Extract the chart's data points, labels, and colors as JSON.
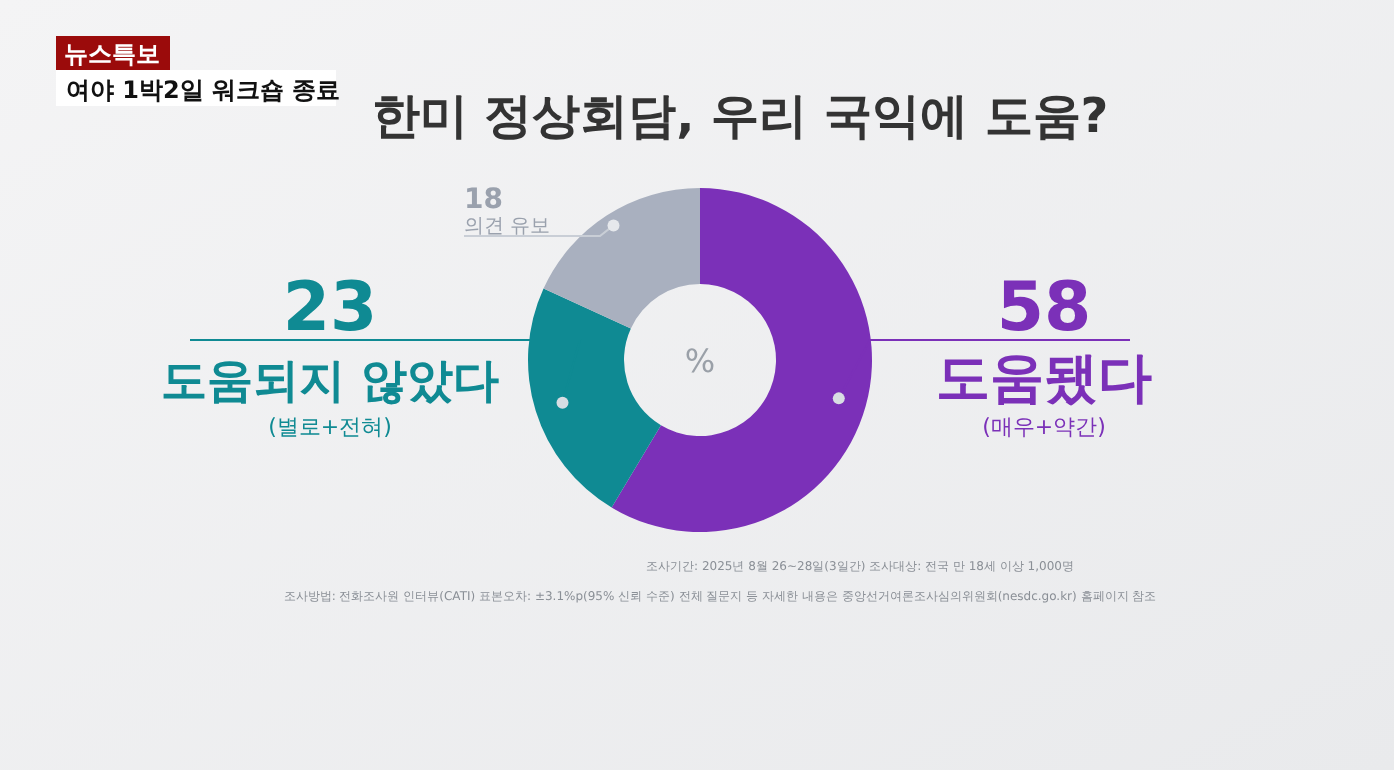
{
  "chart_data": {
    "type": "donut",
    "title": "한미 정상회담, 우리 국익에 도움?",
    "categories": [
      "도움됐다",
      "도움되지 않았다",
      "의견 유보"
    ],
    "values": [
      58,
      23,
      18
    ],
    "colors": [
      "#7b30b8",
      "#0f8a93",
      "#a9b0bf"
    ],
    "data_labels": true,
    "annotations": [
      "뉴스특보",
      "여야 1박2일 워크숍 종료",
      "%",
      "(매우+약간)",
      "(별로+전혀)",
      "조사기간: 2025년 8월 26~28일(3일간)",
      "조사대상: 전국 만 18세 이상 1,000명",
      "조사방법: 전화조사원 인터뷰(CATI)",
      "표본오차: ±3.1%p(95% 신뢰 수준)",
      "전체 질문지 등 자세한 내용은 중앙선거여론조사심의위원회(nesdc.go.kr) 홈페이지 참조"
    ]
  }
}
